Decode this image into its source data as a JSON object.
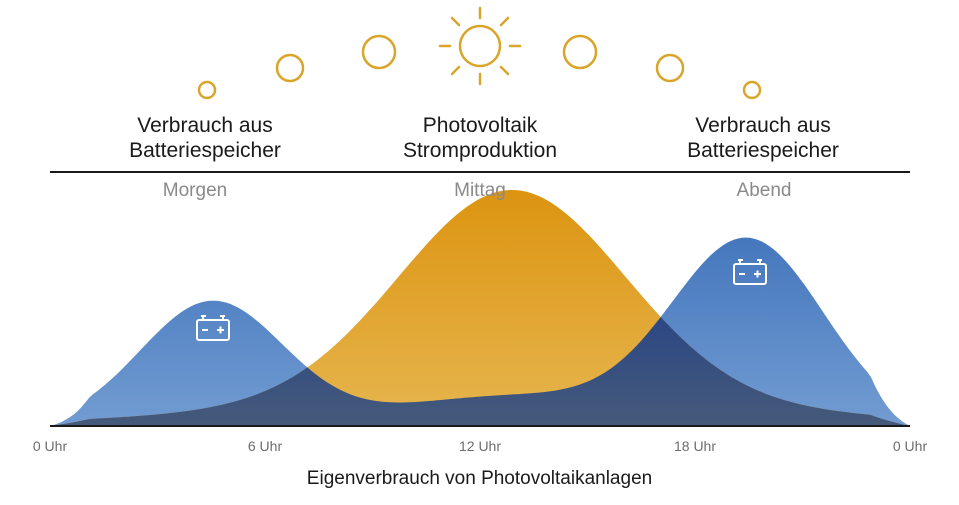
{
  "headings": {
    "left_line1": "Verbrauch aus",
    "left_line2": "Batteriespeicher",
    "center_line1": "Photovoltaik",
    "center_line2": "Stromproduktion",
    "right_line1": "Verbrauch aus",
    "right_line2": "Batteriespeicher"
  },
  "periods": {
    "morning": "Morgen",
    "noon": "Mittag",
    "evening": "Abend"
  },
  "axis_ticks": [
    "0 Uhr",
    "6 Uhr",
    "12 Uhr",
    "18 Uhr",
    "0 Uhr"
  ],
  "caption": "Eigenverbrauch von Photovoltaikanlagen",
  "icons": [
    "sun-icon",
    "battery-icon"
  ],
  "colors": {
    "sun": "#d9a52b",
    "pv_curve_top": "#dc9410",
    "pv_curve_bottom": "#e6b650",
    "battery_curve_top": "#4a7fc0",
    "battery_curve_bottom": "#6f9ad0",
    "overlap": "#1e3d8a",
    "baseline": "#1a1a1a"
  }
}
